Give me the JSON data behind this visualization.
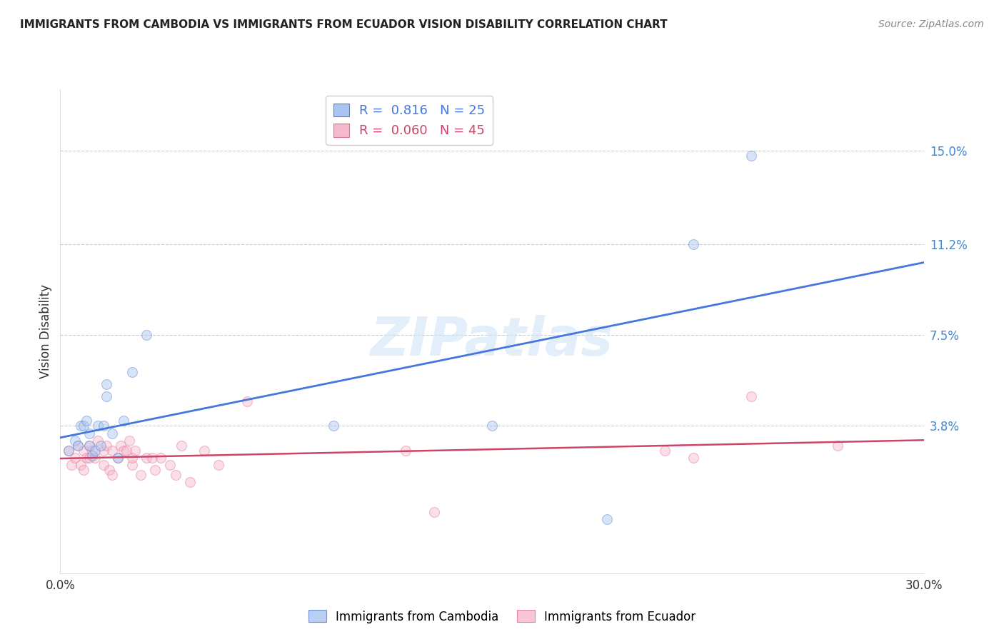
{
  "title": "IMMIGRANTS FROM CAMBODIA VS IMMIGRANTS FROM ECUADOR VISION DISABILITY CORRELATION CHART",
  "source": "Source: ZipAtlas.com",
  "ylabel": "Vision Disability",
  "ytick_values": [
    0.15,
    0.112,
    0.075,
    0.038
  ],
  "ytick_labels": [
    "15.0%",
    "11.2%",
    "7.5%",
    "3.8%"
  ],
  "xlim": [
    0.0,
    0.3
  ],
  "ylim": [
    -0.022,
    0.175
  ],
  "cambodia_color": "#a8c4f0",
  "cambodia_edge_color": "#5580cc",
  "ecuador_color": "#f5b8cc",
  "ecuador_edge_color": "#e07090",
  "cambodia_line_color": "#4477dd",
  "ecuador_line_color": "#cc4466",
  "legend_R_cambodia": "0.816",
  "legend_N_cambodia": "25",
  "legend_R_ecuador": "0.060",
  "legend_N_ecuador": "45",
  "watermark": "ZIPatlas",
  "cambodia_x": [
    0.003,
    0.005,
    0.006,
    0.007,
    0.008,
    0.009,
    0.01,
    0.01,
    0.011,
    0.012,
    0.013,
    0.014,
    0.015,
    0.016,
    0.016,
    0.018,
    0.02,
    0.022,
    0.025,
    0.03,
    0.095,
    0.15,
    0.19,
    0.22,
    0.24
  ],
  "cambodia_y": [
    0.028,
    0.032,
    0.03,
    0.038,
    0.038,
    0.04,
    0.03,
    0.035,
    0.026,
    0.028,
    0.038,
    0.03,
    0.038,
    0.05,
    0.055,
    0.035,
    0.025,
    0.04,
    0.06,
    0.075,
    0.038,
    0.038,
    0.0,
    0.112,
    0.148
  ],
  "ecuador_x": [
    0.003,
    0.004,
    0.005,
    0.006,
    0.007,
    0.008,
    0.008,
    0.009,
    0.01,
    0.01,
    0.011,
    0.012,
    0.013,
    0.015,
    0.015,
    0.016,
    0.017,
    0.018,
    0.018,
    0.02,
    0.021,
    0.022,
    0.023,
    0.024,
    0.025,
    0.025,
    0.026,
    0.028,
    0.03,
    0.032,
    0.033,
    0.035,
    0.038,
    0.04,
    0.042,
    0.045,
    0.05,
    0.055,
    0.065,
    0.12,
    0.13,
    0.21,
    0.22,
    0.24,
    0.27
  ],
  "ecuador_y": [
    0.028,
    0.022,
    0.025,
    0.03,
    0.022,
    0.028,
    0.02,
    0.025,
    0.025,
    0.03,
    0.028,
    0.025,
    0.032,
    0.028,
    0.022,
    0.03,
    0.02,
    0.028,
    0.018,
    0.025,
    0.03,
    0.028,
    0.028,
    0.032,
    0.022,
    0.025,
    0.028,
    0.018,
    0.025,
    0.025,
    0.02,
    0.025,
    0.022,
    0.018,
    0.03,
    0.015,
    0.028,
    0.022,
    0.048,
    0.028,
    0.003,
    0.028,
    0.025,
    0.05,
    0.03
  ],
  "marker_size": 100,
  "marker_alpha": 0.45,
  "grid_color": "#cccccc",
  "background_color": "#ffffff"
}
